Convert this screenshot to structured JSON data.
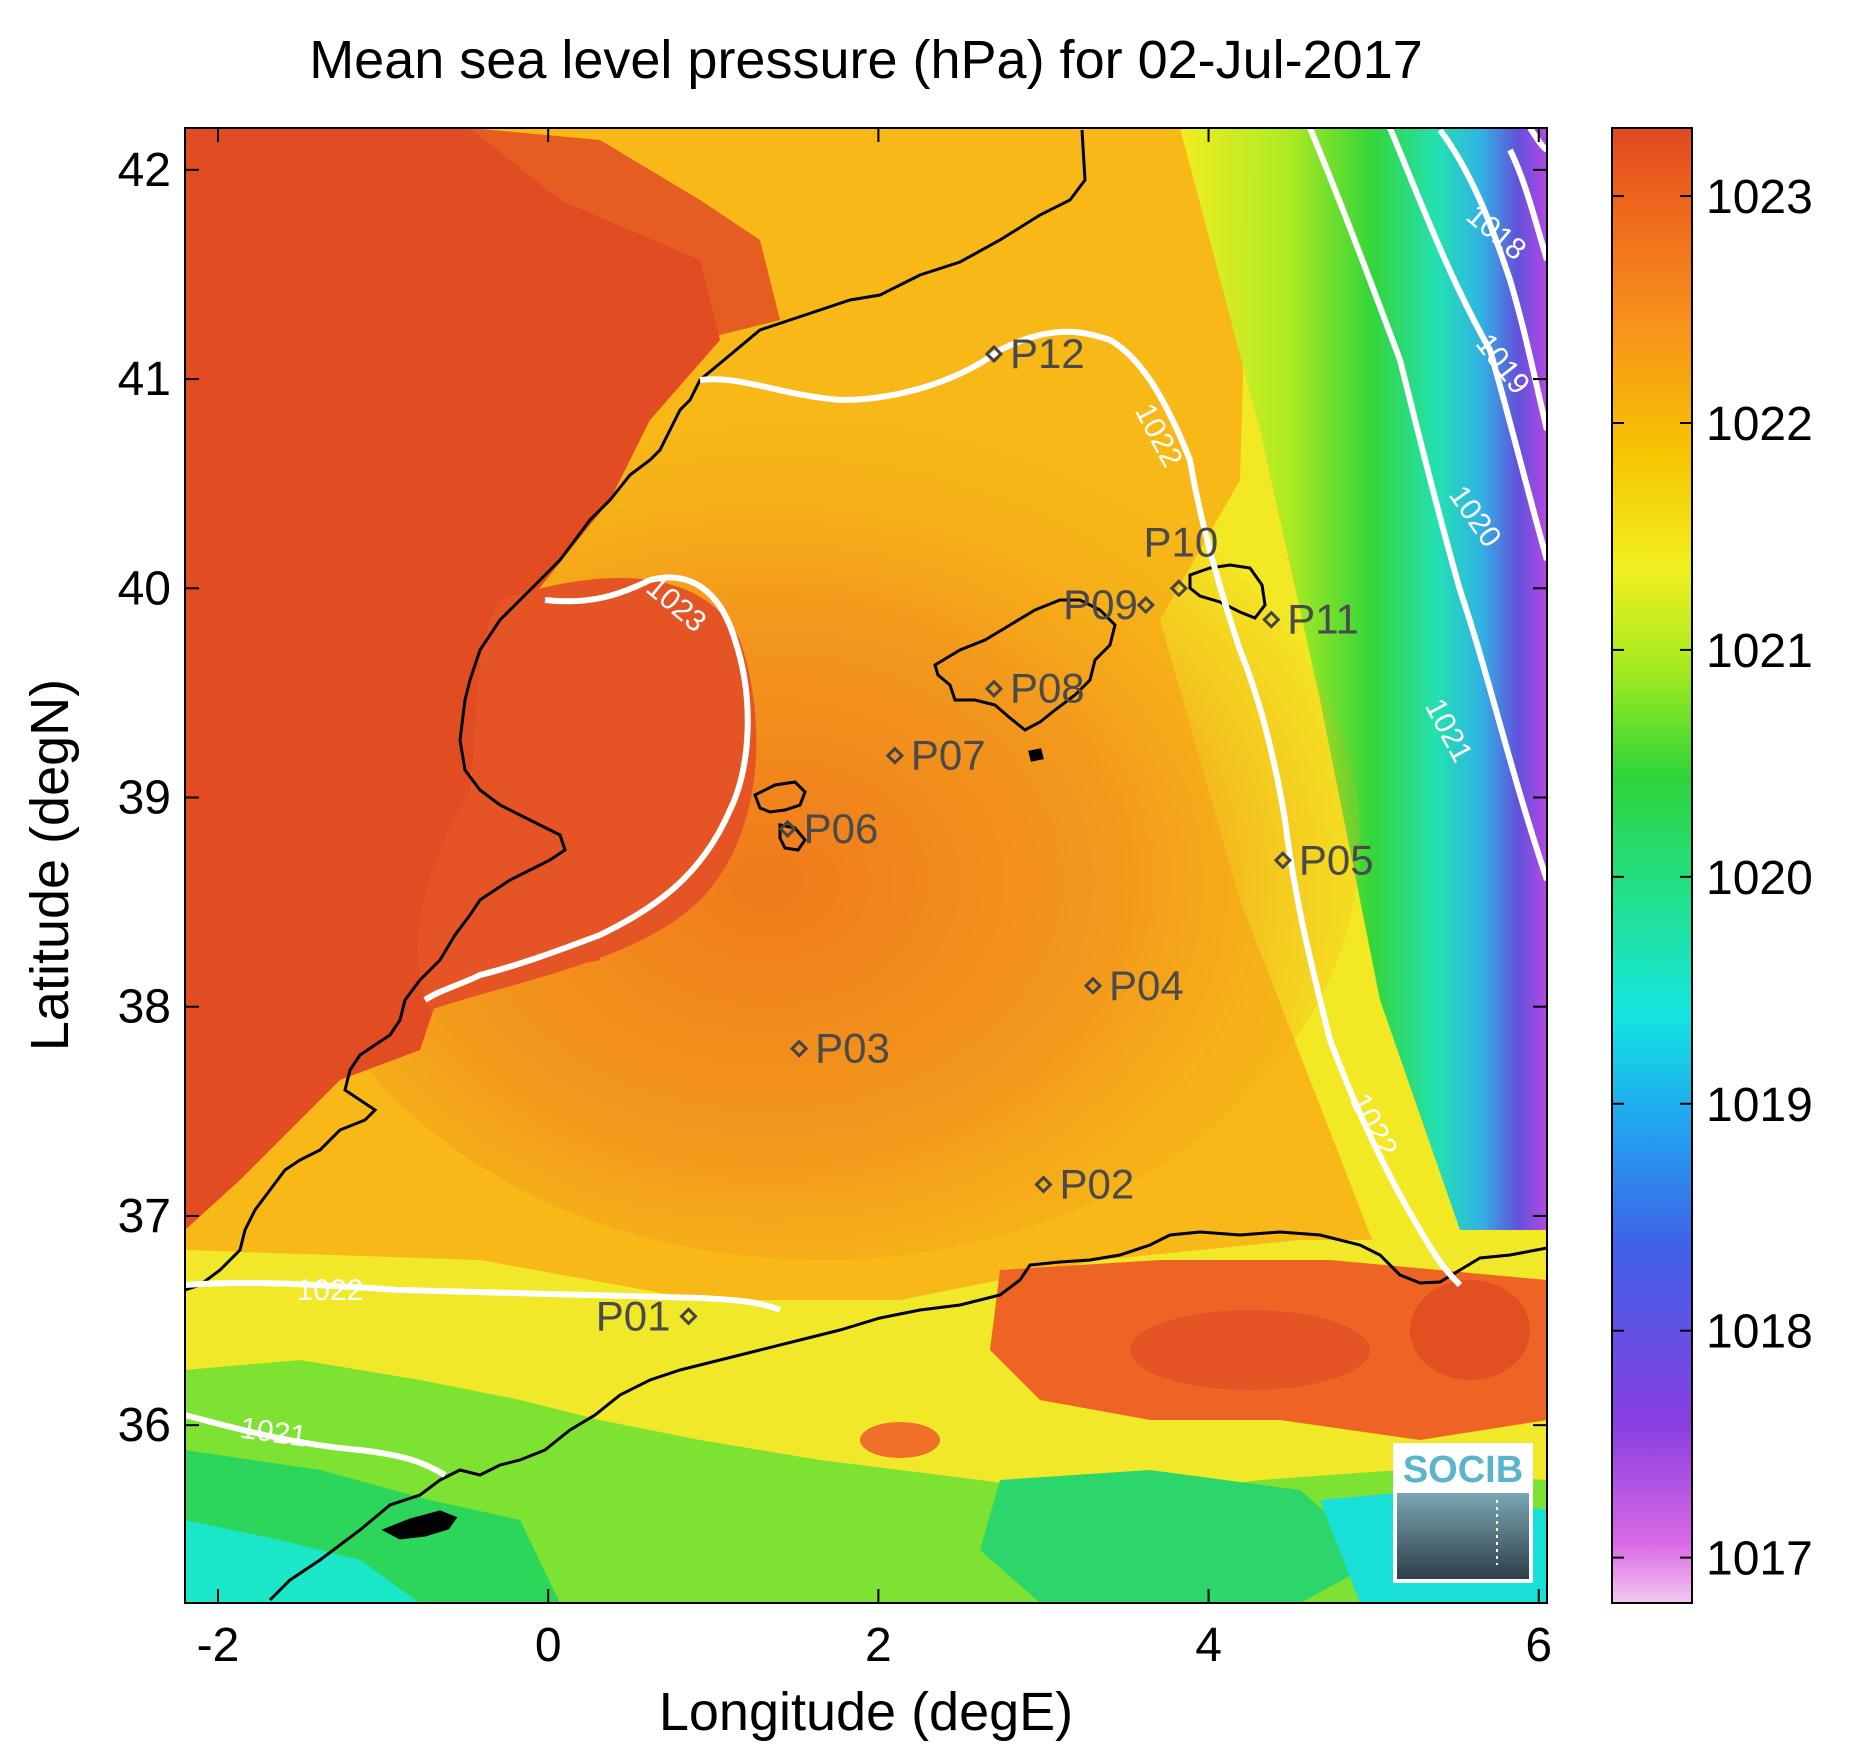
{
  "chart_data": {
    "type": "heatmap",
    "title": "Mean sea level pressure (hPa) for 02-Jul-2017",
    "xlabel": "Longitude (degE)",
    "ylabel": "Latitude (degN)",
    "xlim": [
      -2.2,
      6.05
    ],
    "ylim": [
      35.15,
      42.2
    ],
    "xticks": [
      -2,
      0,
      2,
      4,
      6
    ],
    "yticks": [
      36,
      37,
      38,
      39,
      40,
      41,
      42
    ],
    "colorbar": {
      "min": 1016.8,
      "max": 1023.3,
      "ticks": [
        1017,
        1018,
        1019,
        1020,
        1021,
        1022,
        1023
      ],
      "colormap": "jet-like (violet low, red high)"
    },
    "contours": [
      {
        "label": "1023",
        "level": 1023
      },
      {
        "label": "1022",
        "level": 1022
      },
      {
        "label": "1021",
        "level": 1021
      },
      {
        "label": "1020",
        "level": 1020
      },
      {
        "label": "1019",
        "level": 1019
      },
      {
        "label": "1018",
        "level": 1018
      }
    ],
    "stations": [
      {
        "name": "P01",
        "lon": 0.85,
        "lat": 36.52
      },
      {
        "name": "P02",
        "lon": 3.0,
        "lat": 37.15
      },
      {
        "name": "P03",
        "lon": 1.52,
        "lat": 37.8
      },
      {
        "name": "P04",
        "lon": 3.3,
        "lat": 38.1
      },
      {
        "name": "P05",
        "lon": 4.45,
        "lat": 38.7
      },
      {
        "name": "P06",
        "lon": 1.45,
        "lat": 38.85
      },
      {
        "name": "P07",
        "lon": 2.1,
        "lat": 39.2
      },
      {
        "name": "P08",
        "lon": 2.7,
        "lat": 39.52
      },
      {
        "name": "P09",
        "lon": 3.62,
        "lat": 39.92
      },
      {
        "name": "P10",
        "lon": 3.82,
        "lat": 40.0
      },
      {
        "name": "P11",
        "lon": 4.38,
        "lat": 39.85
      },
      {
        "name": "P12",
        "lon": 2.7,
        "lat": 41.12
      }
    ],
    "grid": false,
    "logo": "SOCIB"
  }
}
